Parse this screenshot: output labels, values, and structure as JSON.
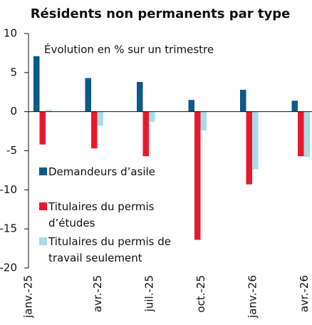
{
  "chart_data": {
    "type": "bar",
    "title": "Résidents non permanents par type",
    "annotation": "Évolution en % sur un trimestre",
    "categories": [
      "janv.-25",
      "avr.-25",
      "juil.-25",
      "oct.-25",
      "janv.-26",
      "avr.-26"
    ],
    "series": [
      {
        "name": "Demandeurs d’asile",
        "color": "#0b5a87",
        "values": [
          7.1,
          4.3,
          3.8,
          1.5,
          2.8,
          1.4
        ]
      },
      {
        "name": "Titulaires du permis d’études",
        "color": "#e8192c",
        "values": [
          -4.2,
          -4.7,
          -5.7,
          -16.4,
          -9.3,
          -5.7
        ]
      },
      {
        "name": "Titulaires du permis de travail seulement",
        "color": "#a8dcea",
        "values": [
          0.2,
          -1.8,
          -1.3,
          -2.4,
          -7.4,
          -5.8
        ]
      }
    ],
    "ylim": [
      -20,
      10
    ],
    "yticks": [
      10,
      5,
      0,
      -5,
      -10,
      -15,
      -20
    ],
    "grid": false
  }
}
